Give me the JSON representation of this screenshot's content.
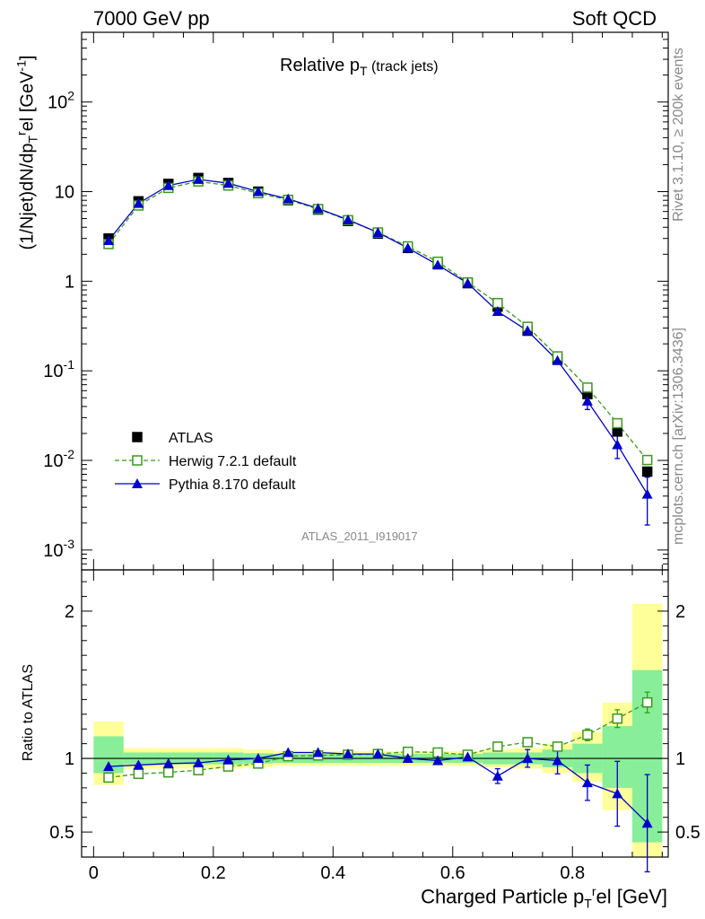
{
  "header": {
    "left": "7000 GeV pp",
    "right": "Soft QCD"
  },
  "side_labels": {
    "rivet": "Rivet 3.1.10, ≥ 200k events",
    "mcplots": "mcplots.cern.ch [arXiv:1306.3436]"
  },
  "analysis_id": "ATLAS_2011_I919017",
  "title": {
    "main": "Relative p",
    "sub": "T",
    "extra": " (track jets)"
  },
  "ylabel_top": "(1/Njet)dN/dp_T^rel [GeV^-1]",
  "ylabel_top_parts": {
    "a": "(1/Njet)dN/dp",
    "sub": "T",
    "sup": "r",
    "b": "el [GeV",
    "sup2": "-1",
    "c": "]"
  },
  "ylabel_bottom": "Ratio to ATLAS",
  "xlabel": "Charged Particle p_T^rel [GeV]",
  "xlabel_parts": {
    "a": "Charged Particle p",
    "sub": "T",
    "sup": "r",
    "b": "el [GeV]"
  },
  "colors": {
    "atlas": "#000000",
    "herwig": "#3a9a1a",
    "pythia": "#0000cc",
    "band_yellow": "#ffff99",
    "band_green": "#88ee99"
  },
  "legend": [
    {
      "key": "atlas",
      "label": "ATLAS"
    },
    {
      "key": "herwig",
      "label": "Herwig 7.2.1 default"
    },
    {
      "key": "pythia",
      "label": "Pythia 8.170 default"
    }
  ],
  "chart_data": [
    {
      "type": "scatter",
      "scale": "log",
      "title": "Relative pT (track jets)",
      "xlabel": "Charged Particle pT rel [GeV]",
      "ylabel": "(1/Njet)dN/dpT rel [GeV^-1]",
      "xlim": [
        -0.02,
        0.96
      ],
      "ylim": [
        0.0006,
        600
      ],
      "y_ticks": [
        {
          "v": 0.001,
          "m": "10",
          "e": "-3"
        },
        {
          "v": 0.01,
          "m": "10",
          "e": "-2"
        },
        {
          "v": 0.1,
          "m": "10",
          "e": "-1"
        },
        {
          "v": 1,
          "m": "1",
          "e": ""
        },
        {
          "v": 10,
          "m": "10",
          "e": ""
        },
        {
          "v": 100,
          "m": "10",
          "e": "2"
        }
      ],
      "x": [
        0.025,
        0.075,
        0.125,
        0.175,
        0.225,
        0.275,
        0.325,
        0.375,
        0.425,
        0.475,
        0.525,
        0.575,
        0.625,
        0.675,
        0.725,
        0.775,
        0.825,
        0.875,
        0.925
      ],
      "series": [
        {
          "name": "ATLAS",
          "key": "atlas",
          "values": [
            3.0,
            7.8,
            12.2,
            14.2,
            12.5,
            10.0,
            8.0,
            6.3,
            4.7,
            3.4,
            2.35,
            1.55,
            0.95,
            0.52,
            0.28,
            0.135,
            0.055,
            0.021,
            0.0075
          ]
        },
        {
          "name": "Herwig 7.2.1 default",
          "key": "herwig",
          "values": [
            2.6,
            7.0,
            11.0,
            13.0,
            11.7,
            9.6,
            8.1,
            6.4,
            4.8,
            3.5,
            2.45,
            1.65,
            0.97,
            0.57,
            0.31,
            0.145,
            0.065,
            0.026,
            0.0101
          ]
        },
        {
          "name": "Pythia 8.170 default",
          "key": "pythia",
          "values": [
            2.85,
            7.4,
            11.7,
            13.7,
            12.4,
            10.0,
            8.3,
            6.5,
            4.85,
            3.5,
            2.35,
            1.52,
            0.95,
            0.46,
            0.28,
            0.13,
            0.046,
            0.015,
            0.0042
          ],
          "errors": [
            0,
            0,
            0,
            0,
            0,
            0,
            0,
            0,
            0,
            0,
            0,
            0,
            0,
            0,
            0,
            0,
            0.009,
            0.0045,
            0.0023
          ]
        }
      ]
    },
    {
      "type": "scatter",
      "title": "",
      "xlabel": "Charged Particle pT rel [GeV]",
      "ylabel": "Ratio to ATLAS",
      "xlim": [
        -0.02,
        0.96
      ],
      "ylim": [
        0.33,
        2.28
      ],
      "y_ticks": [
        0.5,
        1,
        2
      ],
      "x_ticks": [
        0,
        0.2,
        0.4,
        0.6,
        0.8
      ],
      "x_tick_labels": [
        "0",
        "0.2",
        "0.4",
        "0.6",
        "0.8"
      ],
      "x": [
        0.025,
        0.075,
        0.125,
        0.175,
        0.225,
        0.275,
        0.325,
        0.375,
        0.425,
        0.475,
        0.525,
        0.575,
        0.625,
        0.675,
        0.725,
        0.775,
        0.825,
        0.875,
        0.925
      ],
      "bin_edges": [
        0,
        0.05,
        0.1,
        0.15,
        0.2,
        0.25,
        0.3,
        0.35,
        0.4,
        0.45,
        0.5,
        0.55,
        0.6,
        0.65,
        0.7,
        0.75,
        0.8,
        0.85,
        0.9,
        0.95
      ],
      "bands": {
        "yellow": [
          [
            0.82,
            1.25
          ],
          [
            0.93,
            1.07
          ],
          [
            0.93,
            1.07
          ],
          [
            0.93,
            1.07
          ],
          [
            0.93,
            1.07
          ],
          [
            0.94,
            1.06
          ],
          [
            0.95,
            1.05
          ],
          [
            0.95,
            1.05
          ],
          [
            0.95,
            1.05
          ],
          [
            0.95,
            1.05
          ],
          [
            0.95,
            1.05
          ],
          [
            0.95,
            1.05
          ],
          [
            0.95,
            1.05
          ],
          [
            0.94,
            1.06
          ],
          [
            0.93,
            1.07
          ],
          [
            0.9,
            1.1
          ],
          [
            0.84,
            1.18
          ],
          [
            0.65,
            1.38
          ],
          [
            0.33,
            2.05
          ]
        ],
        "green": [
          [
            0.9,
            1.15
          ],
          [
            0.96,
            1.04
          ],
          [
            0.96,
            1.04
          ],
          [
            0.96,
            1.04
          ],
          [
            0.96,
            1.04
          ],
          [
            0.965,
            1.035
          ],
          [
            0.97,
            1.03
          ],
          [
            0.97,
            1.03
          ],
          [
            0.97,
            1.03
          ],
          [
            0.97,
            1.03
          ],
          [
            0.97,
            1.03
          ],
          [
            0.97,
            1.03
          ],
          [
            0.97,
            1.03
          ],
          [
            0.96,
            1.04
          ],
          [
            0.96,
            1.04
          ],
          [
            0.94,
            1.06
          ],
          [
            0.9,
            1.1
          ],
          [
            0.8,
            1.22
          ],
          [
            0.43,
            1.6
          ]
        ]
      },
      "series": [
        {
          "name": "Herwig 7.2.1 default",
          "key": "herwig",
          "values": [
            0.87,
            0.895,
            0.905,
            0.92,
            0.945,
            0.965,
            1.015,
            1.02,
            1.025,
            1.03,
            1.045,
            1.04,
            1.025,
            1.08,
            1.11,
            1.08,
            1.16,
            1.27,
            1.38
          ],
          "errors": [
            0,
            0,
            0,
            0,
            0,
            0,
            0,
            0,
            0,
            0,
            0,
            0,
            0,
            0.02,
            0.03,
            0.02,
            0.04,
            0.06,
            0.07
          ]
        },
        {
          "name": "Pythia 8.170 default",
          "key": "pythia",
          "values": [
            0.945,
            0.955,
            0.965,
            0.97,
            0.99,
            1.0,
            1.04,
            1.04,
            1.03,
            1.03,
            1.0,
            0.985,
            1.01,
            0.88,
            1.0,
            0.985,
            0.835,
            0.76,
            0.56
          ],
          "errors": [
            0,
            0,
            0,
            0,
            0,
            0,
            0,
            0,
            0,
            0,
            0,
            0,
            0,
            0.05,
            0.06,
            0.09,
            0.12,
            0.22,
            0.33
          ]
        }
      ]
    }
  ]
}
